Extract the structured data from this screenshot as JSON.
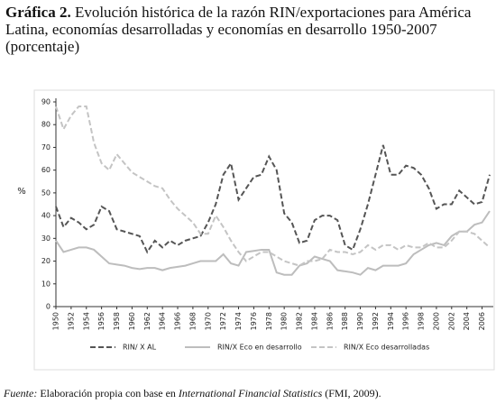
{
  "chart_data": {
    "type": "line",
    "label": "Gráfica 2.",
    "title": "Evolución histórica de la razón RIN/exportaciones para América Latina, economías desarrolladas y economías en desarrollo 1950-2007 (porcentaje)",
    "ylabel": "%",
    "x": [
      1950,
      1951,
      1952,
      1953,
      1954,
      1955,
      1956,
      1957,
      1958,
      1959,
      1960,
      1961,
      1962,
      1963,
      1964,
      1965,
      1966,
      1967,
      1968,
      1969,
      1970,
      1971,
      1972,
      1973,
      1974,
      1975,
      1976,
      1977,
      1978,
      1979,
      1980,
      1981,
      1982,
      1983,
      1984,
      1985,
      1986,
      1987,
      1988,
      1989,
      1990,
      1991,
      1992,
      1993,
      1994,
      1995,
      1996,
      1997,
      1998,
      1999,
      2000,
      2001,
      2002,
      2003,
      2004,
      2005,
      2006,
      2007
    ],
    "xlim": [
      1950,
      2007
    ],
    "xticks": [
      1950,
      1952,
      1954,
      1956,
      1958,
      1960,
      1962,
      1964,
      1966,
      1968,
      1970,
      1972,
      1974,
      1976,
      1978,
      1980,
      1982,
      1984,
      1986,
      1988,
      1990,
      1992,
      1994,
      1996,
      1998,
      2000,
      2002,
      2004,
      2006
    ],
    "ylim": [
      0,
      90
    ],
    "yticks": [
      0,
      10,
      20,
      30,
      40,
      50,
      60,
      70,
      80,
      90
    ],
    "series": [
      {
        "name": "RIN/ X AL",
        "color": "#555555",
        "style": "dashed",
        "values": [
          44,
          35,
          39,
          37,
          34,
          36,
          44,
          42,
          34,
          33,
          32,
          31,
          24,
          29,
          26,
          29,
          27,
          29,
          30,
          31,
          37,
          45,
          58,
          63,
          47,
          52,
          57,
          58,
          66,
          60,
          41,
          37,
          28,
          29,
          38,
          40,
          40,
          38,
          27,
          25,
          34,
          45,
          58,
          71,
          58,
          58,
          62,
          61,
          58,
          52,
          43,
          45,
          45,
          51,
          48,
          45,
          46,
          58
        ]
      },
      {
        "name": "RIN/X Eco en desarrollo",
        "color": "#bdbdbd",
        "style": "solid",
        "values": [
          29,
          24,
          25,
          26,
          26,
          25,
          22,
          19,
          18.5,
          18,
          17,
          16.5,
          17,
          17,
          16,
          17,
          17.5,
          18,
          19,
          20,
          20,
          20,
          23,
          19,
          18,
          24,
          24.5,
          25,
          25,
          15,
          14,
          14,
          18,
          19,
          22,
          21,
          20,
          16,
          15.5,
          15,
          14,
          17,
          16,
          18,
          18,
          18,
          19,
          23,
          25,
          27,
          28,
          27,
          31,
          33,
          33,
          36,
          37,
          42
        ]
      },
      {
        "name": "RIN/X Eco desarrolladas",
        "color": "#c4c4c4",
        "style": "dashed",
        "values": [
          88,
          78,
          84,
          88,
          88,
          72,
          63,
          60,
          67,
          63,
          59,
          57,
          55,
          53,
          52,
          47,
          43,
          40,
          37,
          32,
          32,
          40,
          35,
          29,
          24,
          20,
          22,
          24,
          24,
          22,
          20,
          19,
          18,
          20,
          20,
          21,
          25,
          24,
          24,
          23,
          24,
          27,
          25,
          27,
          27,
          25,
          27,
          26,
          26,
          28,
          26,
          26,
          29,
          33,
          33,
          32,
          29,
          26
        ]
      }
    ],
    "source_parts": [
      "Fuente:",
      "Elaboración propia con base en",
      "International Financial Statistics",
      "(FMI, 2009)."
    ]
  }
}
